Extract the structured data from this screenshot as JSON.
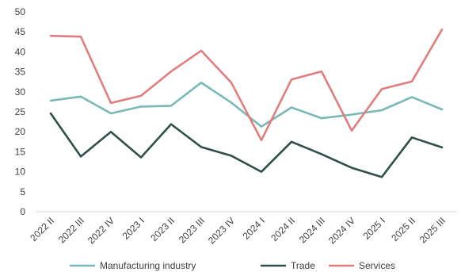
{
  "chart_data": {
    "type": "line",
    "title": "",
    "xlabel": "",
    "ylabel": "",
    "categories": [
      "2022 II",
      "2022 III",
      "2022 IV",
      "2023 I",
      "2023 II",
      "2023 III",
      "2023 IV",
      "2024 I",
      "2024 II",
      "2024 III",
      "2024 IV",
      "2025 I",
      "2025 II",
      "2025 III"
    ],
    "ylim": [
      0,
      50
    ],
    "yticks": [
      0,
      5,
      10,
      15,
      20,
      25,
      30,
      35,
      40,
      45,
      50
    ],
    "grid": false,
    "legend_position": "bottom",
    "series": [
      {
        "name": "Manufacturing industry",
        "color": "#7ab8b8",
        "values": [
          27.8,
          28.8,
          24.6,
          26.3,
          26.5,
          32.3,
          27.3,
          21.3,
          26.1,
          23.4,
          24.3,
          25.4,
          28.7,
          25.6
        ]
      },
      {
        "name": "Trade",
        "color": "#2f4f4a",
        "values": [
          24.6,
          13.8,
          20.0,
          13.6,
          21.9,
          16.2,
          14.0,
          10.0,
          17.5,
          14.4,
          11.0,
          8.7,
          18.6,
          16.1
        ]
      },
      {
        "name": "Services",
        "color": "#e07e7e",
        "values": [
          44.0,
          43.8,
          27.2,
          29.0,
          35.1,
          40.3,
          32.3,
          17.9,
          33.1,
          35.1,
          20.3,
          30.7,
          32.6,
          45.6
        ]
      }
    ]
  }
}
